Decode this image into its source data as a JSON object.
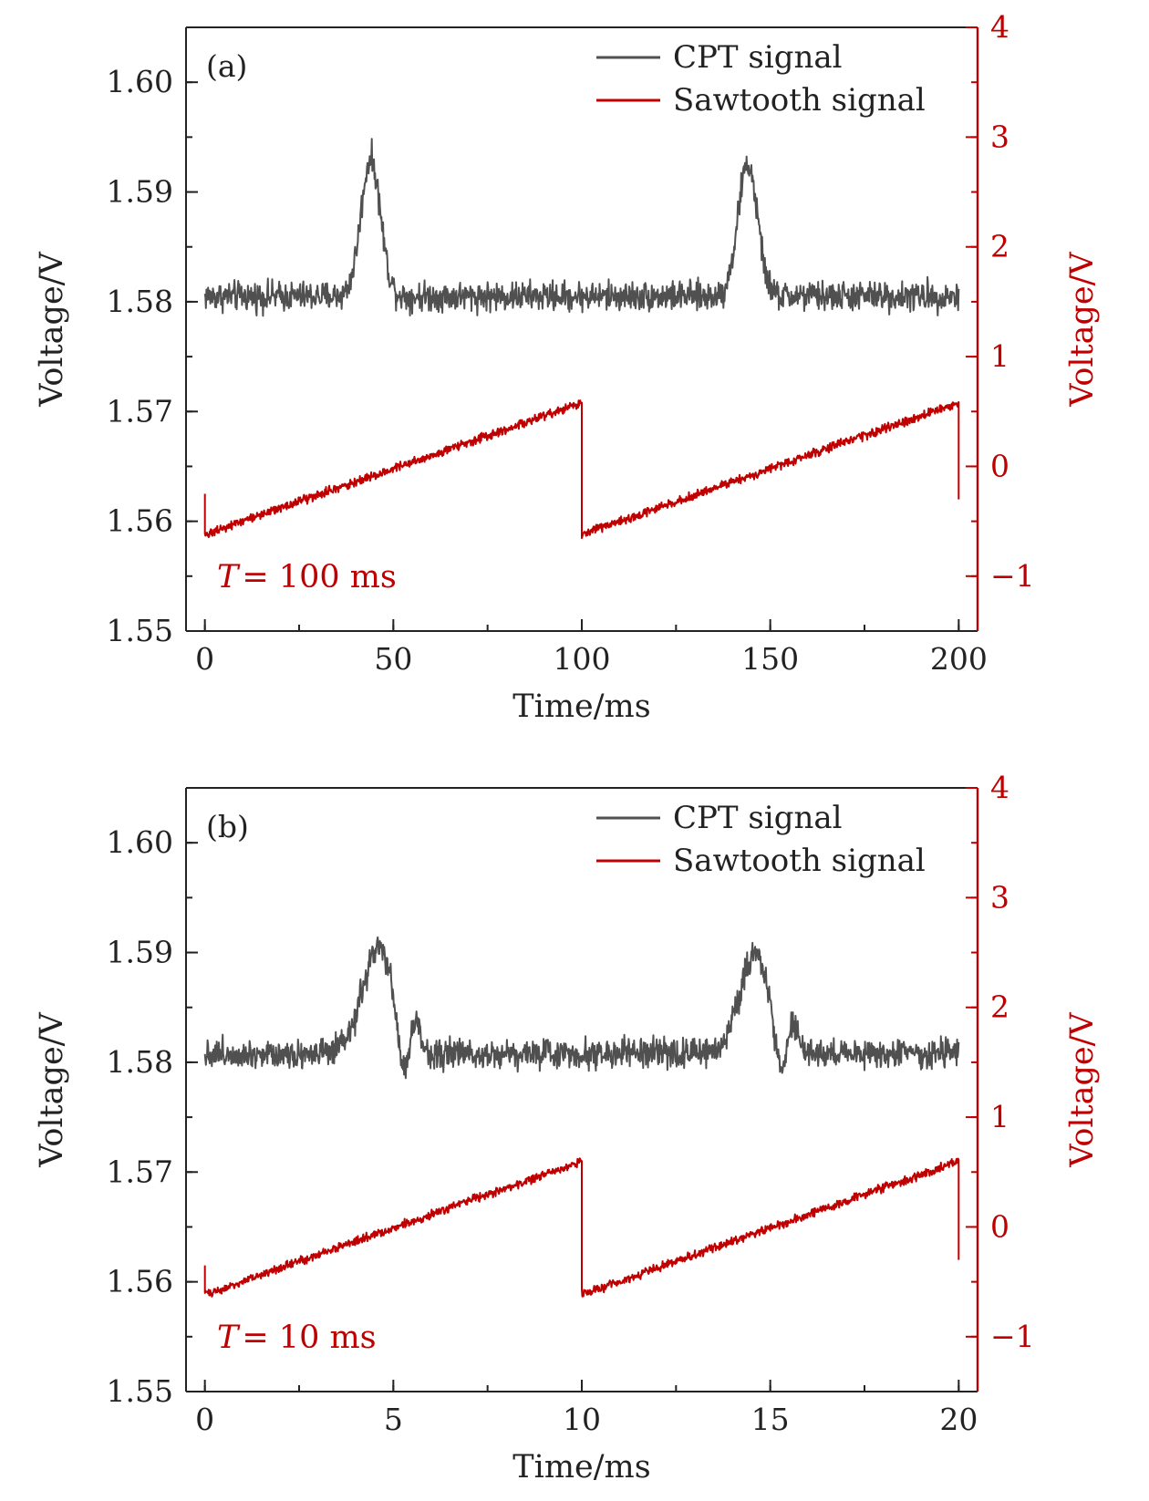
{
  "colors": {
    "cpt": "#505050",
    "sawtooth": "#c00000",
    "axis": "#222222",
    "right_axis": "#c00000"
  },
  "chart_data": [
    {
      "type": "line",
      "panel_label": "(a)",
      "xlabel": "Time/ms",
      "ylabel_left": "Voltage/V",
      "ylabel_right": "Voltage/V",
      "xlim": [
        -5,
        205
      ],
      "ylim_left": [
        1.55,
        1.605
      ],
      "ylim_right": [
        -1.5,
        4
      ],
      "x_ticks": [
        0,
        50,
        100,
        150,
        200
      ],
      "x_tick_labels": [
        "0",
        "50",
        "100",
        "150",
        "200"
      ],
      "x_minor_step": 25,
      "y_left_ticks": [
        1.55,
        1.56,
        1.57,
        1.58,
        1.59,
        1.6
      ],
      "y_left_tick_labels": [
        "1.55",
        "1.56",
        "1.57",
        "1.58",
        "1.59",
        "1.60"
      ],
      "y_left_minor_step": 0.005,
      "y_right_ticks": [
        -1,
        0,
        1,
        2,
        3,
        4
      ],
      "y_right_tick_labels": [
        "−1",
        "0",
        "1",
        "2",
        "3",
        "4"
      ],
      "y_right_minor_step": 0.5,
      "legend": {
        "position": "top-right",
        "entries": [
          "CPT signal",
          "Sawtooth signal"
        ]
      },
      "annotation": {
        "prefix": "T",
        "text": "= 100 ms"
      },
      "series": [
        {
          "name": "CPT signal",
          "axis": "left",
          "baseline": 1.5805,
          "noise": 0.0012,
          "x_range": [
            0,
            200
          ],
          "peaks": [
            {
              "x": 44,
              "height": 0.0125,
              "width": 2.6
            },
            {
              "x": 144,
              "height": 0.012,
              "width": 2.6
            }
          ],
          "dips": []
        },
        {
          "name": "Sawtooth signal",
          "axis": "right",
          "period": 100,
          "x_range": [
            0,
            200
          ],
          "start_value": -0.25,
          "min": -0.62,
          "max": 0.58,
          "end_value": -0.3,
          "noise": 0.05
        }
      ]
    },
    {
      "type": "line",
      "panel_label": "(b)",
      "xlabel": "Time/ms",
      "ylabel_left": "Voltage/V",
      "ylabel_right": "Voltage/V",
      "xlim": [
        -0.5,
        20.5
      ],
      "ylim_left": [
        1.55,
        1.605
      ],
      "ylim_right": [
        -1.5,
        4
      ],
      "x_ticks": [
        0,
        5,
        10,
        15,
        20
      ],
      "x_tick_labels": [
        "0",
        "5",
        "10",
        "15",
        "20"
      ],
      "x_minor_step": 2.5,
      "y_left_ticks": [
        1.55,
        1.56,
        1.57,
        1.58,
        1.59,
        1.6
      ],
      "y_left_tick_labels": [
        "1.55",
        "1.56",
        "1.57",
        "1.58",
        "1.59",
        "1.60"
      ],
      "y_left_minor_step": 0.005,
      "y_right_ticks": [
        -1,
        0,
        1,
        2,
        3,
        4
      ],
      "y_right_tick_labels": [
        "−1",
        "0",
        "1",
        "2",
        "3",
        "4"
      ],
      "y_right_minor_step": 0.5,
      "legend": {
        "position": "top-right",
        "entries": [
          "CPT signal",
          "Sawtooth signal"
        ]
      },
      "annotation": {
        "prefix": "T",
        "text": "= 10 ms"
      },
      "series": [
        {
          "name": "CPT signal",
          "axis": "left",
          "baseline": 1.5808,
          "noise": 0.0012,
          "x_range": [
            0,
            20
          ],
          "peaks": [
            {
              "x": 4.6,
              "height": 0.0095,
              "width": 0.42
            },
            {
              "x": 14.6,
              "height": 0.009,
              "width": 0.42
            },
            {
              "x": 5.6,
              "height": 0.0025,
              "width": 0.12
            },
            {
              "x": 15.6,
              "height": 0.0025,
              "width": 0.12
            }
          ],
          "dips": [
            {
              "x": 5.25,
              "depth": 0.004,
              "width": 0.14
            },
            {
              "x": 15.25,
              "depth": 0.004,
              "width": 0.14
            }
          ]
        },
        {
          "name": "Sawtooth signal",
          "axis": "right",
          "period": 10,
          "x_range": [
            0,
            20
          ],
          "start_value": -0.35,
          "min": -0.62,
          "max": 0.6,
          "end_value": -0.3,
          "noise": 0.05
        }
      ]
    }
  ]
}
